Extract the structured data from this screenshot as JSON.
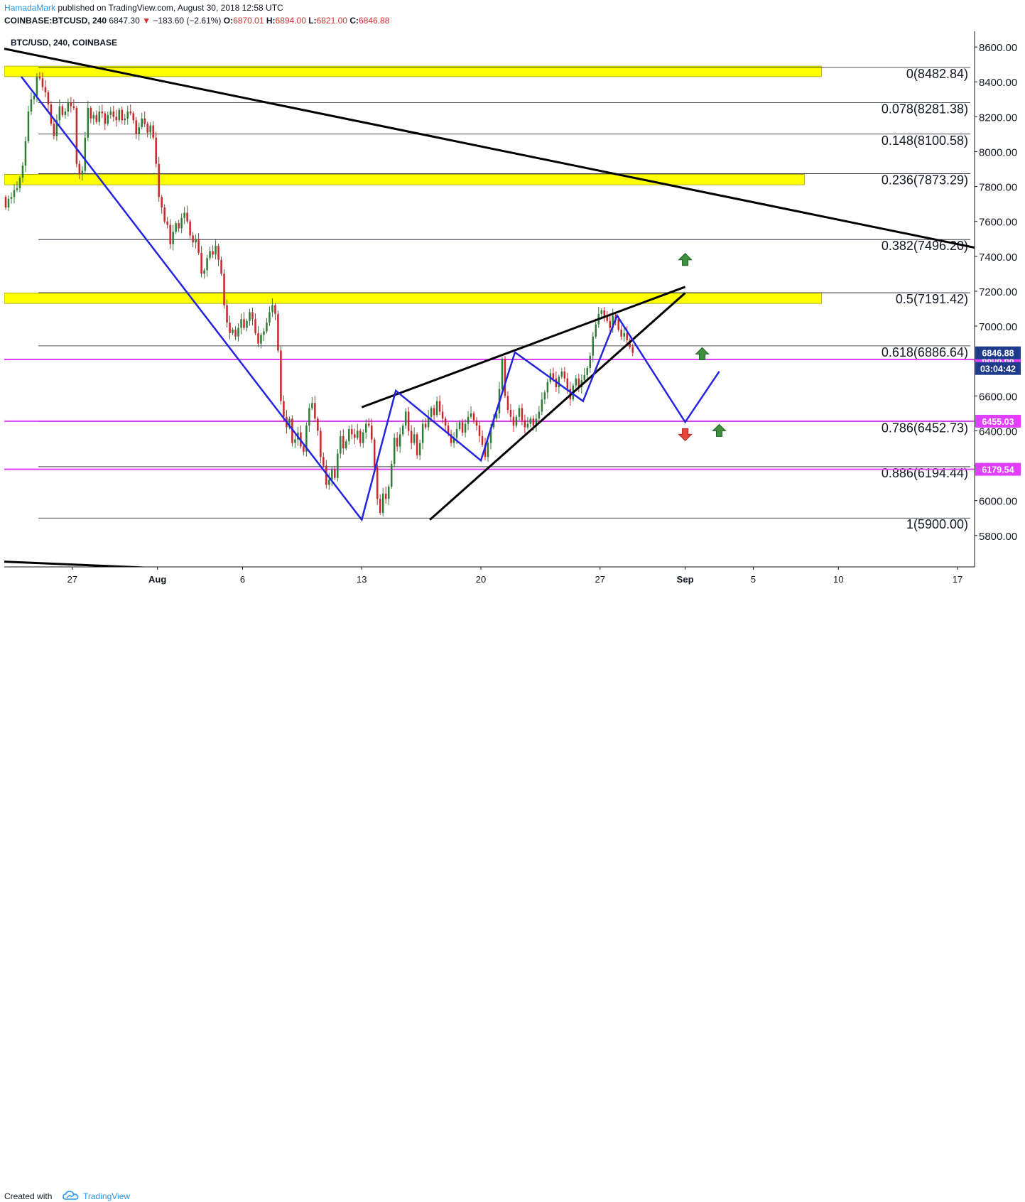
{
  "header": {
    "author": "HamadaMark",
    "published_text": "published on TradingView.com, August 30, 2018 12:58 UTC",
    "symbol": "COINBASE:BTCUSD, 240",
    "last": "6847.30",
    "change_arrow": "▼",
    "change": "−183.60 (−2.61%)",
    "open_label": "O:",
    "open": "6870.01",
    "high_label": "H:",
    "high": "6894.00",
    "low_label": "L:",
    "low": "6821.00",
    "close_label": "C:",
    "close": "6846.88"
  },
  "footer": {
    "created_with": "Created with",
    "brand": "TradingView",
    "logo_icon": "tradingview-cloud-icon"
  },
  "colors": {
    "up": "#2e7d32",
    "down": "#c62828",
    "pattern": "#2424e0",
    "zone": "#ffff00",
    "support": "#e040fb",
    "price_tag": "#1e3a8a",
    "fib": "#131722"
  },
  "chart_data": {
    "type": "candlestick",
    "title": "BTC/USD, 240, COINBASE",
    "symbol": "BTC/USD",
    "interval": "240",
    "exchange": "COINBASE",
    "ylim": [
      5620,
      8690
    ],
    "x_range": [
      "2018-07-23",
      "2018-09-18"
    ],
    "grid": false,
    "y_ticks": [
      "5800.00",
      "6000.00",
      "6200.00",
      "6400.00",
      "6600.00",
      "6800.00",
      "7000.00",
      "7200.00",
      "7400.00",
      "7600.00",
      "7800.00",
      "8000.00",
      "8200.00",
      "8400.00",
      "8600.00"
    ],
    "x_ticks": [
      {
        "label": "27",
        "date": "2018-07-27"
      },
      {
        "label": "Aug",
        "date": "2018-08-01"
      },
      {
        "label": "6",
        "date": "2018-08-06"
      },
      {
        "label": "13",
        "date": "2018-08-13"
      },
      {
        "label": "20",
        "date": "2018-08-20"
      },
      {
        "label": "27",
        "date": "2018-08-27"
      },
      {
        "label": "Sep",
        "date": "2018-09-01"
      },
      {
        "label": "5",
        "date": "2018-09-05"
      },
      {
        "label": "10",
        "date": "2018-09-10"
      },
      {
        "label": "17",
        "date": "2018-09-17"
      }
    ],
    "fib_levels": [
      {
        "label": "0(8482.84)",
        "value": 8482.84
      },
      {
        "label": "0.078(8281.38)",
        "value": 8281.38
      },
      {
        "label": "0.148(8100.58)",
        "value": 8100.58
      },
      {
        "label": "0.236(7873.29)",
        "value": 7873.29
      },
      {
        "label": "0.382(7496.20)",
        "value": 7496.2
      },
      {
        "label": "0.5(7191.42)",
        "value": 7191.42
      },
      {
        "label": "0.618(6886.64)",
        "value": 6886.64
      },
      {
        "label": "0.786(6452.73)",
        "value": 6452.73
      },
      {
        "label": "0.886(6194.44)",
        "value": 6194.44
      },
      {
        "label": "1(5900.00)",
        "value": 5900.0
      }
    ],
    "resistance_zones": [
      {
        "low": 8430,
        "high": 8490,
        "start": "2018-07-23",
        "end": "2018-09-09"
      },
      {
        "low": 7810,
        "high": 7870,
        "start": "2018-07-23",
        "end": "2018-09-08"
      },
      {
        "low": 7130,
        "high": 7190,
        "start": "2018-07-23",
        "end": "2018-09-09"
      }
    ],
    "support_lines": [
      {
        "value": 6808.68,
        "label": "6808.68"
      },
      {
        "value": 6455.03,
        "label": "6455.03"
      },
      {
        "value": 6179.54,
        "label": "6179.54"
      }
    ],
    "last_price": {
      "value": 6846.88,
      "label": "6846.88",
      "countdown": "03:04:42"
    },
    "trend_lines": [
      {
        "from": {
          "date": "2018-07-23",
          "price": 8590
        },
        "to": {
          "date": "2018-09-18",
          "price": 7450
        }
      },
      {
        "from": {
          "date": "2018-07-23",
          "price": 5650
        },
        "to": {
          "date": "2018-09-07",
          "price": 5460
        }
      },
      {
        "from": {
          "date": "2018-08-13",
          "price": 6535
        },
        "to": {
          "date": "2018-09-01",
          "price": 7225
        }
      },
      {
        "from": {
          "date": "2018-08-17",
          "price": 5890
        },
        "to": {
          "date": "2018-09-01",
          "price": 7190
        }
      }
    ],
    "pattern_path": [
      {
        "date": "2018-07-24",
        "price": 8430
      },
      {
        "date": "2018-08-13",
        "price": 5890
      },
      {
        "date": "2018-08-15",
        "price": 6630
      },
      {
        "date": "2018-08-20",
        "price": 6230
      },
      {
        "date": "2018-08-22",
        "price": 6850
      },
      {
        "date": "2018-08-26",
        "price": 6570
      },
      {
        "date": "2018-08-28",
        "price": 7060
      },
      {
        "date": "2018-09-01",
        "price": 6450
      },
      {
        "date": "2018-09-03",
        "price": 6740
      }
    ],
    "arrows": [
      {
        "direction": "up",
        "date": "2018-09-01",
        "price": 7380
      },
      {
        "direction": "up",
        "date": "2018-09-02",
        "price": 6840
      },
      {
        "direction": "up",
        "date": "2018-09-03",
        "price": 6400
      },
      {
        "direction": "down",
        "date": "2018-09-01",
        "price": 6380
      }
    ],
    "candles_anchor": {
      "start": "2018-07-23",
      "interval_hours": 4
    },
    "candle_path": [
      [
        7740,
        7680
      ],
      [
        7680,
        7730
      ],
      [
        7730,
        7740
      ],
      [
        7740,
        7780
      ],
      [
        7780,
        7790
      ],
      [
        7790,
        7850
      ],
      [
        7850,
        7920
      ],
      [
        7920,
        8060
      ],
      [
        8060,
        8230
      ],
      [
        8230,
        8300
      ],
      [
        8300,
        8320
      ],
      [
        8320,
        8430
      ],
      [
        8430,
        8420
      ],
      [
        8420,
        8370
      ],
      [
        8370,
        8340
      ],
      [
        8340,
        8270
      ],
      [
        8270,
        8160
      ],
      [
        8160,
        8090
      ],
      [
        8090,
        8180
      ],
      [
        8180,
        8260
      ],
      [
        8260,
        8210
      ],
      [
        8210,
        8230
      ],
      [
        8230,
        8280
      ],
      [
        8280,
        8260
      ],
      [
        8260,
        8250
      ],
      [
        8250,
        7930
      ],
      [
        7930,
        7870
      ],
      [
        7870,
        7890
      ],
      [
        7890,
        8080
      ],
      [
        8080,
        8250
      ],
      [
        8250,
        8190
      ],
      [
        8190,
        8210
      ],
      [
        8210,
        8170
      ],
      [
        8170,
        8230
      ],
      [
        8230,
        8220
      ],
      [
        8220,
        8160
      ],
      [
        8160,
        8210
      ],
      [
        8210,
        8230
      ],
      [
        8230,
        8200
      ],
      [
        8200,
        8180
      ],
      [
        8180,
        8240
      ],
      [
        8240,
        8180
      ],
      [
        8180,
        8190
      ],
      [
        8190,
        8230
      ],
      [
        8230,
        8220
      ],
      [
        8220,
        8180
      ],
      [
        8180,
        8100
      ],
      [
        8100,
        8140
      ],
      [
        8140,
        8190
      ],
      [
        8190,
        8160
      ],
      [
        8160,
        8110
      ],
      [
        8110,
        8150
      ],
      [
        8150,
        8080
      ],
      [
        8080,
        7930
      ],
      [
        7930,
        7740
      ],
      [
        7740,
        7680
      ],
      [
        7680,
        7600
      ],
      [
        7600,
        7580
      ],
      [
        7580,
        7470
      ],
      [
        7470,
        7540
      ],
      [
        7540,
        7590
      ],
      [
        7590,
        7560
      ],
      [
        7560,
        7620
      ],
      [
        7620,
        7650
      ],
      [
        7650,
        7600
      ],
      [
        7600,
        7520
      ],
      [
        7520,
        7480
      ],
      [
        7480,
        7500
      ],
      [
        7500,
        7420
      ],
      [
        7420,
        7300
      ],
      [
        7300,
        7320
      ],
      [
        7320,
        7390
      ],
      [
        7390,
        7430
      ],
      [
        7430,
        7410
      ],
      [
        7410,
        7460
      ],
      [
        7460,
        7380
      ],
      [
        7380,
        7300
      ],
      [
        7300,
        7120
      ],
      [
        7120,
        7020
      ],
      [
        7020,
        6960
      ],
      [
        6960,
        6980
      ],
      [
        6980,
        6940
      ],
      [
        6940,
        6990
      ],
      [
        6990,
        7040
      ],
      [
        7040,
        6990
      ],
      [
        6990,
        7030
      ],
      [
        7030,
        7080
      ],
      [
        7080,
        7040
      ],
      [
        7040,
        6960
      ],
      [
        6960,
        6900
      ],
      [
        6900,
        6950
      ],
      [
        6950,
        6970
      ],
      [
        6970,
        7020
      ],
      [
        7020,
        7080
      ],
      [
        7080,
        7120
      ],
      [
        7120,
        7070
      ],
      [
        7070,
        6860
      ],
      [
        6860,
        6570
      ],
      [
        6570,
        6480
      ],
      [
        6480,
        6420
      ],
      [
        6420,
        6470
      ],
      [
        6470,
        6330
      ],
      [
        6330,
        6350
      ],
      [
        6350,
        6390
      ],
      [
        6390,
        6310
      ],
      [
        6310,
        6280
      ],
      [
        6280,
        6430
      ],
      [
        6430,
        6530
      ],
      [
        6530,
        6560
      ],
      [
        6560,
        6470
      ],
      [
        6470,
        6400
      ],
      [
        6400,
        6250
      ],
      [
        6250,
        6200
      ],
      [
        6200,
        6090
      ],
      [
        6090,
        6120
      ],
      [
        6120,
        6180
      ],
      [
        6180,
        6130
      ],
      [
        6130,
        6270
      ],
      [
        6270,
        6370
      ],
      [
        6370,
        6300
      ],
      [
        6300,
        6340
      ],
      [
        6340,
        6410
      ],
      [
        6410,
        6380
      ],
      [
        6380,
        6360
      ],
      [
        6360,
        6400
      ],
      [
        6400,
        6330
      ],
      [
        6330,
        6390
      ],
      [
        6390,
        6440
      ],
      [
        6440,
        6430
      ],
      [
        6430,
        6350
      ],
      [
        6350,
        6190
      ],
      [
        6190,
        6010
      ],
      [
        6010,
        5930
      ],
      [
        5930,
        6040
      ],
      [
        6040,
        6010
      ],
      [
        6010,
        6080
      ],
      [
        6080,
        6210
      ],
      [
        6210,
        6360
      ],
      [
        6360,
        6310
      ],
      [
        6310,
        6380
      ],
      [
        6380,
        6430
      ],
      [
        6430,
        6510
      ],
      [
        6510,
        6400
      ],
      [
        6400,
        6330
      ],
      [
        6330,
        6380
      ],
      [
        6380,
        6260
      ],
      [
        6260,
        6330
      ],
      [
        6330,
        6440
      ],
      [
        6440,
        6420
      ],
      [
        6420,
        6480
      ],
      [
        6480,
        6530
      ],
      [
        6530,
        6490
      ],
      [
        6490,
        6570
      ],
      [
        6570,
        6510
      ],
      [
        6510,
        6470
      ],
      [
        6470,
        6430
      ],
      [
        6430,
        6380
      ],
      [
        6380,
        6330
      ],
      [
        6330,
        6360
      ],
      [
        6360,
        6410
      ],
      [
        6410,
        6450
      ],
      [
        6450,
        6390
      ],
      [
        6390,
        6440
      ],
      [
        6440,
        6480
      ],
      [
        6480,
        6500
      ],
      [
        6500,
        6460
      ],
      [
        6460,
        6430
      ],
      [
        6430,
        6370
      ],
      [
        6370,
        6320
      ],
      [
        6320,
        6250
      ],
      [
        6250,
        6330
      ],
      [
        6330,
        6420
      ],
      [
        6420,
        6470
      ],
      [
        6470,
        6500
      ],
      [
        6500,
        6640
      ],
      [
        6640,
        6810
      ],
      [
        6810,
        6600
      ],
      [
        6600,
        6520
      ],
      [
        6520,
        6480
      ],
      [
        6480,
        6430
      ],
      [
        6430,
        6480
      ],
      [
        6480,
        6530
      ],
      [
        6530,
        6460
      ],
      [
        6460,
        6420
      ],
      [
        6420,
        6440
      ],
      [
        6440,
        6470
      ],
      [
        6470,
        6430
      ],
      [
        6430,
        6470
      ],
      [
        6470,
        6510
      ],
      [
        6510,
        6580
      ],
      [
        6580,
        6620
      ],
      [
        6620,
        6680
      ],
      [
        6680,
        6730
      ],
      [
        6730,
        6700
      ],
      [
        6700,
        6650
      ],
      [
        6650,
        6710
      ],
      [
        6710,
        6740
      ],
      [
        6740,
        6700
      ],
      [
        6700,
        6640
      ],
      [
        6640,
        6580
      ],
      [
        6580,
        6660
      ],
      [
        6660,
        6700
      ],
      [
        6700,
        6650
      ],
      [
        6650,
        6690
      ],
      [
        6690,
        6720
      ],
      [
        6720,
        6760
      ],
      [
        6760,
        6830
      ],
      [
        6830,
        6940
      ],
      [
        6940,
        7010
      ],
      [
        7010,
        7070
      ],
      [
        7070,
        7090
      ],
      [
        7090,
        7060
      ],
      [
        7060,
        7030
      ],
      [
        7030,
        6990
      ],
      [
        6990,
        7060
      ],
      [
        7060,
        7040
      ],
      [
        7040,
        6980
      ],
      [
        6980,
        6940
      ],
      [
        6940,
        6960
      ],
      [
        6960,
        6920
      ],
      [
        6920,
        6880
      ],
      [
        6880,
        6847
      ]
    ]
  }
}
